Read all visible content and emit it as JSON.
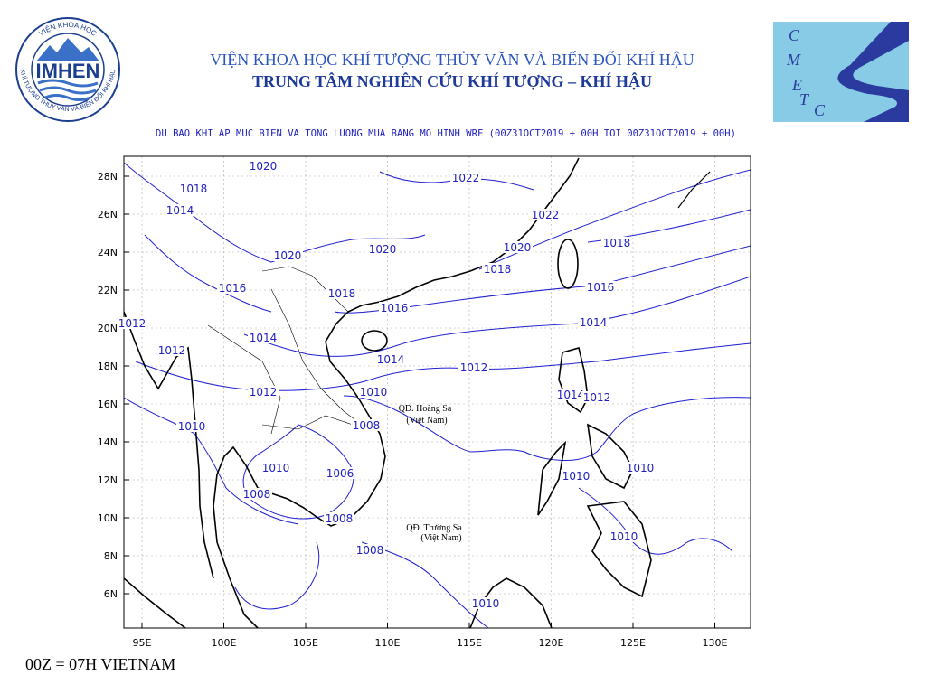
{
  "header": {
    "institute": "VIỆN KHOA HỌC KHÍ TƯỢNG THỦY VĂN VÀ BIẾN ĐỔI KHÍ HẬU",
    "center": "TRUNG TÂM NGHIÊN CỨU KHÍ TƯỢNG – KHÍ HẬU"
  },
  "logos": {
    "imhen": {
      "name": "IMHEN",
      "ring_top": "VIỆN KHOA HỌC",
      "ring_bottom": "KHÍ TƯỢNG THỦY VĂN VÀ BIẾN ĐỔI KHÍ HẬU"
    },
    "cmetc": {
      "letters": [
        "C",
        "M",
        "E",
        "T",
        "C"
      ]
    }
  },
  "map": {
    "title": "DU BAO KHI AP MUC BIEN VA TONG LUONG MUA BANG MO HINH WRF (00Z31OCT2019 + 00H TOI 00Z31OCT2019 + 00H)",
    "lon_ticks": [
      {
        "value": 95,
        "label": "95E"
      },
      {
        "value": 100,
        "label": "100E"
      },
      {
        "value": 105,
        "label": "105E"
      },
      {
        "value": 110,
        "label": "110E"
      },
      {
        "value": 115,
        "label": "115E"
      },
      {
        "value": 120,
        "label": "120E"
      },
      {
        "value": 125,
        "label": "125E"
      },
      {
        "value": 130,
        "label": "130E"
      }
    ],
    "lat_ticks": [
      {
        "value": 28,
        "label": "28N"
      },
      {
        "value": 26,
        "label": "26N"
      },
      {
        "value": 24,
        "label": "24N"
      },
      {
        "value": 22,
        "label": "22N"
      },
      {
        "value": 20,
        "label": "20N"
      },
      {
        "value": 18,
        "label": "18N"
      },
      {
        "value": 16,
        "label": "16N"
      },
      {
        "value": 14,
        "label": "14N"
      },
      {
        "value": 12,
        "label": "12N"
      },
      {
        "value": 10,
        "label": "10N"
      },
      {
        "value": 8,
        "label": "8N"
      },
      {
        "value": 6,
        "label": "6N"
      }
    ],
    "isobar_labels": [
      "1020",
      "1022",
      "1018",
      "1014",
      "1022",
      "1020",
      "1018",
      "1020",
      "1020",
      "1018",
      "1016",
      "1018",
      "1016",
      "1016",
      "1012",
      "1014",
      "1014",
      "1012",
      "1014",
      "1012",
      "1012",
      "1010",
      "1014",
      "1012",
      "1010",
      "1008",
      "1010",
      "1006",
      "1010",
      "1010",
      "1008",
      "1008",
      "1008",
      "1010",
      "1010"
    ],
    "places": [
      "QĐ. Hoàng Sa",
      "(Việt Nam)",
      "QĐ. Trường Sa",
      "(Việt Nam)"
    ]
  },
  "footer": "00Z = 07H VIETNAM"
}
